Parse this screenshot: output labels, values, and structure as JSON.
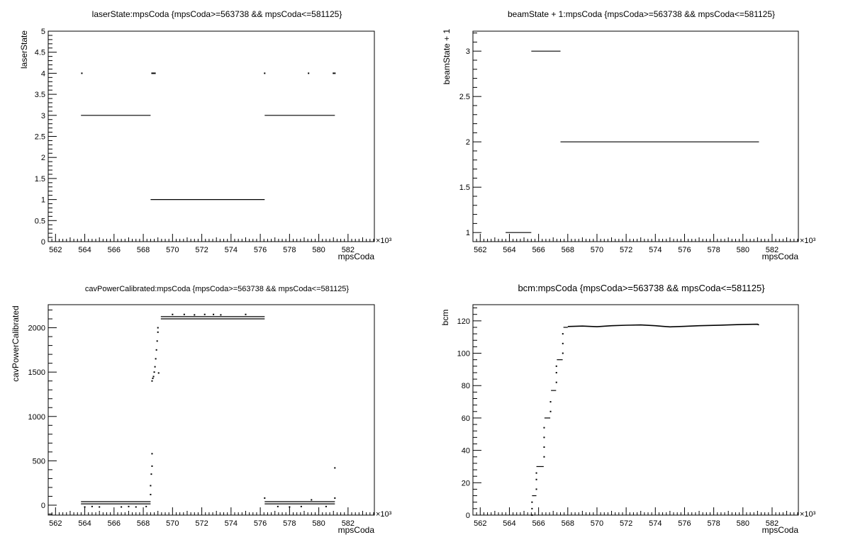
{
  "chart_data": [
    {
      "type": "scatter",
      "title": "laserState:mpsCoda {mpsCoda>=563738 && mpsCoda<=581125}",
      "xlabel": "mpsCoda",
      "ylabel": "laserState",
      "x_exponent": "×10³",
      "xlim": [
        561.5,
        583.8
      ],
      "ylim": [
        0,
        5
      ],
      "x_ticks": [
        562,
        564,
        566,
        568,
        570,
        572,
        574,
        576,
        578,
        580,
        582
      ],
      "y_ticks": [
        0,
        0.5,
        1,
        1.5,
        2,
        2.5,
        3,
        3.5,
        4,
        4.5,
        5
      ],
      "y_tick_labels": [
        "0",
        "0.5",
        "1",
        "1.5",
        "2",
        "2.5",
        "3",
        "3.5",
        "4",
        "4.5",
        "5"
      ],
      "segments": [
        {
          "x0": 563.74,
          "x1": 568.5,
          "y": 3
        },
        {
          "x0": 568.5,
          "x1": 576.3,
          "y": 1
        },
        {
          "x0": 576.3,
          "x1": 581.1,
          "y": 3
        }
      ],
      "points": [
        [
          563.8,
          4
        ],
        [
          568.6,
          4
        ],
        [
          568.7,
          4
        ],
        [
          568.8,
          4
        ],
        [
          576.3,
          4
        ],
        [
          579.3,
          4
        ],
        [
          581.0,
          4
        ],
        [
          581.1,
          4
        ]
      ]
    },
    {
      "type": "scatter",
      "title": "beamState + 1:mpsCoda {mpsCoda>=563738 && mpsCoda<=581125}",
      "xlabel": "mpsCoda",
      "ylabel": "beamState + 1",
      "x_exponent": "×10³",
      "xlim": [
        561.5,
        583.8
      ],
      "ylim": [
        0.9,
        3.22
      ],
      "x_ticks": [
        562,
        564,
        566,
        568,
        570,
        572,
        574,
        576,
        578,
        580,
        582
      ],
      "y_ticks": [
        1,
        1.5,
        2,
        2.5,
        3
      ],
      "y_tick_labels": [
        "1",
        "1.5",
        "2",
        "2.5",
        "3"
      ],
      "segments": [
        {
          "x0": 563.74,
          "x1": 565.5,
          "y": 1
        },
        {
          "x0": 565.5,
          "x1": 567.5,
          "y": 3
        },
        {
          "x0": 567.5,
          "x1": 581.1,
          "y": 2
        }
      ],
      "points": []
    },
    {
      "type": "scatter",
      "title": "cavPowerCalibrated:mpsCoda {mpsCoda>=563738 && mpsCoda<=581125}",
      "xlabel": "mpsCoda",
      "ylabel": "cavPowerCalibrated",
      "x_exponent": "×10³",
      "xlim": [
        561.5,
        583.8
      ],
      "ylim": [
        -112,
        2260
      ],
      "x_ticks": [
        562,
        564,
        566,
        568,
        570,
        572,
        574,
        576,
        578,
        580,
        582
      ],
      "y_ticks": [
        0,
        500,
        1000,
        1500,
        2000
      ],
      "y_tick_labels": [
        "0",
        "500",
        "1000",
        "1500",
        "2000"
      ],
      "segments": [
        {
          "x0": 563.74,
          "x1": 568.5,
          "y": 40
        },
        {
          "x0": 563.74,
          "x1": 568.5,
          "y": 15
        },
        {
          "x0": 569.2,
          "x1": 576.3,
          "y": 2125
        },
        {
          "x0": 569.2,
          "x1": 576.3,
          "y": 2100
        },
        {
          "x0": 576.3,
          "x1": 581.1,
          "y": 40
        },
        {
          "x0": 576.3,
          "x1": 581.1,
          "y": 15
        }
      ],
      "points": [
        [
          564.0,
          -20
        ],
        [
          564.5,
          -15
        ],
        [
          565.0,
          -20
        ],
        [
          566.5,
          -20
        ],
        [
          567.0,
          -15
        ],
        [
          567.5,
          -20
        ],
        [
          568.2,
          -15
        ],
        [
          568.5,
          120
        ],
        [
          568.5,
          220
        ],
        [
          568.55,
          350
        ],
        [
          568.6,
          440
        ],
        [
          568.6,
          580
        ],
        [
          568.6,
          1400
        ],
        [
          568.65,
          1430
        ],
        [
          568.7,
          1450
        ],
        [
          568.75,
          1500
        ],
        [
          568.8,
          1560
        ],
        [
          568.85,
          1650
        ],
        [
          568.9,
          1750
        ],
        [
          568.95,
          1850
        ],
        [
          569.0,
          1950
        ],
        [
          569.0,
          2000
        ],
        [
          569.05,
          1490
        ],
        [
          570.0,
          2150
        ],
        [
          570.8,
          2150
        ],
        [
          571.5,
          2145
        ],
        [
          572.2,
          2150
        ],
        [
          572.8,
          2150
        ],
        [
          573.3,
          2145
        ],
        [
          575.0,
          2150
        ],
        [
          576.3,
          80
        ],
        [
          577.2,
          -15
        ],
        [
          578.0,
          -20
        ],
        [
          578.8,
          -15
        ],
        [
          579.5,
          60
        ],
        [
          580.5,
          -15
        ],
        [
          581.1,
          80
        ],
        [
          581.1,
          420
        ]
      ]
    },
    {
      "type": "scatter",
      "title": "bcm:mpsCoda {mpsCoda>=563738 && mpsCoda<=581125}",
      "xlabel": "mpsCoda",
      "ylabel": "bcm",
      "x_exponent": "×10³",
      "xlim": [
        561.5,
        583.8
      ],
      "ylim": [
        0,
        130
      ],
      "x_ticks": [
        562,
        564,
        566,
        568,
        570,
        572,
        574,
        576,
        578,
        580,
        582
      ],
      "y_ticks": [
        0,
        20,
        40,
        60,
        80,
        100,
        120
      ],
      "y_tick_labels": [
        "0",
        "20",
        "40",
        "60",
        "80",
        "100",
        "120"
      ],
      "segments": [
        {
          "x0": 565.55,
          "x1": 565.85,
          "y": 12
        },
        {
          "x0": 565.85,
          "x1": 566.35,
          "y": 30
        },
        {
          "x0": 566.4,
          "x1": 566.8,
          "y": 60
        },
        {
          "x0": 566.85,
          "x1": 567.2,
          "y": 77
        },
        {
          "x0": 567.25,
          "x1": 567.65,
          "y": 96
        },
        {
          "x0": 567.7,
          "x1": 568.0,
          "y": 116
        }
      ],
      "points": [
        [
          565.55,
          0
        ],
        [
          565.55,
          4
        ],
        [
          565.55,
          8
        ],
        [
          565.85,
          16
        ],
        [
          565.85,
          22
        ],
        [
          565.85,
          26
        ],
        [
          566.38,
          36
        ],
        [
          566.38,
          42
        ],
        [
          566.38,
          48
        ],
        [
          566.38,
          54
        ],
        [
          566.82,
          64
        ],
        [
          566.82,
          70
        ],
        [
          567.22,
          82
        ],
        [
          567.22,
          88
        ],
        [
          567.22,
          92
        ],
        [
          567.66,
          100
        ],
        [
          567.66,
          106
        ],
        [
          567.66,
          112
        ]
      ],
      "line": [
        [
          568.0,
          116.5
        ],
        [
          569.0,
          116.8
        ],
        [
          570.0,
          116.4
        ],
        [
          571.0,
          117.0
        ],
        [
          572.0,
          117.3
        ],
        [
          573.0,
          117.5
        ],
        [
          574.0,
          117.0
        ],
        [
          574.5,
          116.6
        ],
        [
          575.0,
          116.3
        ],
        [
          576.0,
          116.6
        ],
        [
          577.0,
          117.0
        ],
        [
          578.0,
          117.2
        ],
        [
          579.0,
          117.5
        ],
        [
          580.0,
          117.8
        ],
        [
          581.0,
          117.9
        ],
        [
          581.1,
          117.5
        ]
      ]
    }
  ]
}
